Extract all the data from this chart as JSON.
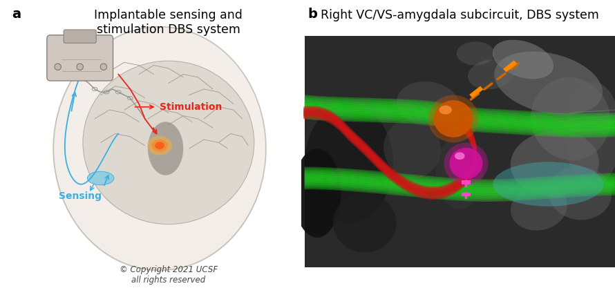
{
  "panel_a_title": "Implantable sensing and\nstimulation DBS system",
  "panel_b_title": "Right VC/VS-amygdala subcircuit, DBS system",
  "panel_a_label": "a",
  "panel_b_label": "b",
  "copyright_text": "© Copyright 2021 UCSF\nall rights reserved",
  "stimulation_label": "Stimulation",
  "sensing_label": "Sensing",
  "stimulation_color": "#e8251a",
  "sensing_color": "#3ab0e0",
  "bg_color": "#ffffff",
  "title_fontsize": 12.5,
  "label_fontsize": 14,
  "annotation_fontsize": 10,
  "copyright_fontsize": 8.5,
  "head_skin_color": "#e8e4df",
  "head_outline_color": "#b0a898",
  "brain_color": "#d8d0c8",
  "brain_fold_color": "#b8b0a8",
  "device_color": "#c8c0b8",
  "mri_bg_color": "#2a2a2a"
}
